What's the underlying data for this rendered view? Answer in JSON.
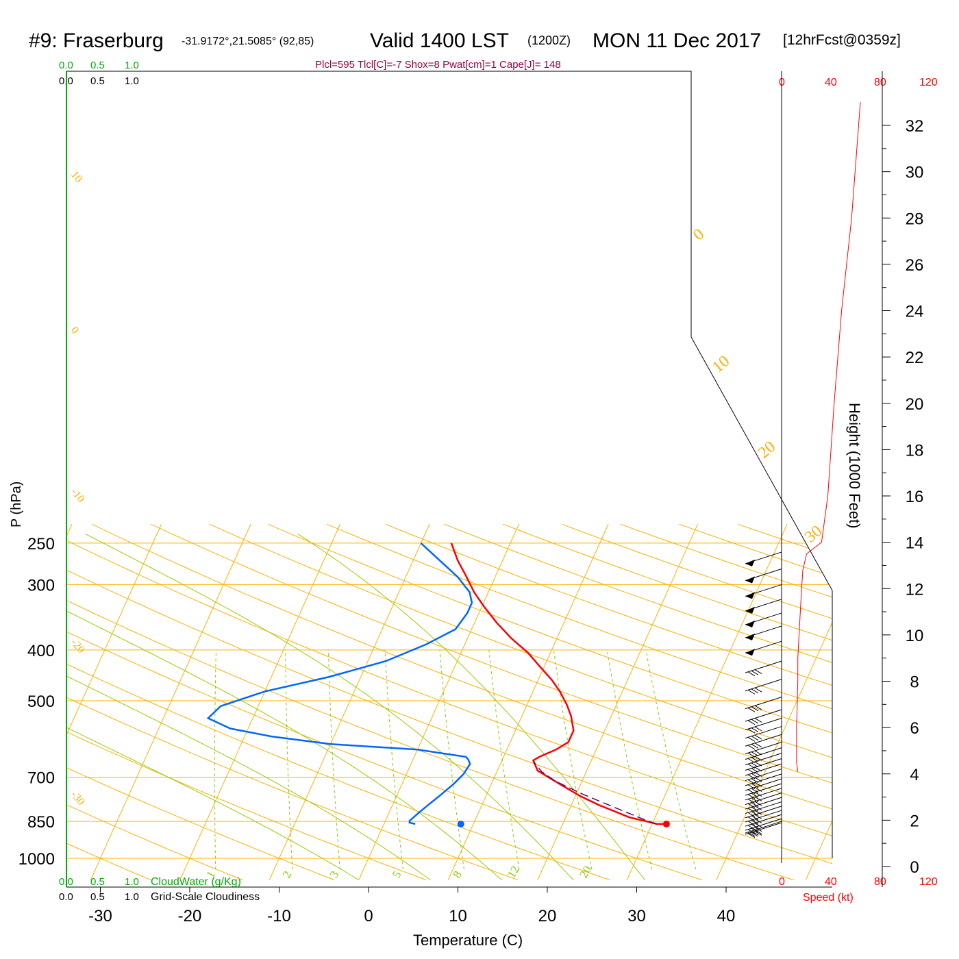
{
  "header": {
    "station": "#9: Fraserburg",
    "coords": "-31.9172°,21.5085° (92,85)",
    "valid": "Valid 1400 LST",
    "utc": "(1200Z)",
    "date": "MON 11 Dec 2017",
    "forecast": "[12hrFcst@0359z]"
  },
  "indices": "Plcl=595 Tlcl[C]=-7 Shox=8 Pwat[cm]=1 Cape[J]= 148",
  "colors": {
    "temperature": "#ff0000",
    "dewpoint": "#0066ff",
    "isobar_isotherm": "#ffb000",
    "adiabat": "#99cc00",
    "mixing_ratio": "#88cc00",
    "parcel": "#660066",
    "cloud_scale": "#00aa00",
    "speed": "#ff0000"
  },
  "cloud_scales": {
    "green_ticks": [
      "0.0",
      "0.5",
      "1.0"
    ],
    "black_ticks": [
      "0.0",
      "0.5",
      "1.0"
    ],
    "bottom_green_label": "CloudWater (g/Kg)",
    "bottom_black_label": "Grid-Scale Cloudiness"
  },
  "speed_axis": {
    "ticks": [
      "0",
      "40",
      "80",
      "120"
    ],
    "label": "Speed (kt)"
  },
  "height_axis": {
    "label": "Height (1000 Feet)",
    "ticks": [
      "0",
      "2",
      "4",
      "6",
      "8",
      "10",
      "12",
      "14",
      "16",
      "18",
      "20",
      "22",
      "24",
      "26",
      "28",
      "30",
      "32"
    ]
  },
  "chart_data": {
    "type": "line",
    "title": "#9: Fraserburg Valid 1400 LST (1200Z) MON 11 Dec 2017",
    "xlabel": "Temperature (C)",
    "ylabel": "P (hPa)",
    "x_ticks": [
      "-30",
      "-20",
      "-10",
      "0",
      "10",
      "20",
      "30",
      "40"
    ],
    "y_ticks": [
      "250",
      "300",
      "400",
      "500",
      "700",
      "850",
      "1000"
    ],
    "y_tick_values": [
      250,
      300,
      400,
      500,
      700,
      850,
      1000
    ],
    "xlim": [
      -33.5,
      36
    ],
    "ylim": [
      1000,
      250
    ],
    "isotherm_labels": [
      "10",
      "0",
      "-10",
      "-20",
      "-30"
    ],
    "upper_isotherm_labels": [
      "0",
      "10",
      "20",
      "30"
    ],
    "mixing_ratio_labels": [
      "1",
      "2",
      "3",
      "5",
      "8",
      "12",
      "20"
    ],
    "series": [
      {
        "name": "Temperature",
        "points": [
          [
            31.6,
            860
          ],
          [
            30.5,
            860
          ],
          [
            29.4,
            851
          ],
          [
            27.1,
            835
          ],
          [
            23.0,
            790
          ],
          [
            20.5,
            760
          ],
          [
            18.0,
            726
          ],
          [
            16.8,
            710
          ],
          [
            14.5,
            680
          ],
          [
            13.5,
            650
          ],
          [
            14.0,
            640
          ],
          [
            15.5,
            620
          ],
          [
            16.5,
            600
          ],
          [
            16.5,
            570
          ],
          [
            15.5,
            535
          ],
          [
            14.5,
            510
          ],
          [
            13.0,
            480
          ],
          [
            11.5,
            456
          ],
          [
            9.5,
            430
          ],
          [
            7.5,
            405
          ],
          [
            4.9,
            380
          ],
          [
            2.5,
            355
          ],
          [
            0.2,
            330
          ],
          [
            -1.6,
            310
          ],
          [
            -3.2,
            290
          ],
          [
            -5.0,
            270
          ],
          [
            -6.6,
            250
          ]
        ]
      },
      {
        "name": "Dewpoint",
        "points": [
          [
            3.5,
            860
          ],
          [
            2.8,
            855
          ],
          [
            2.7,
            848
          ],
          [
            3.3,
            820
          ],
          [
            4.0,
            790
          ],
          [
            4.8,
            760
          ],
          [
            5.8,
            720
          ],
          [
            6.4,
            690
          ],
          [
            6.6,
            660
          ],
          [
            6.2,
            648
          ],
          [
            5.8,
            640
          ],
          [
            0.0,
            620
          ],
          [
            -10.0,
            605
          ],
          [
            -17.0,
            585
          ],
          [
            -22.0,
            565
          ],
          [
            -25.0,
            540
          ],
          [
            -24.2,
            512
          ],
          [
            -20.0,
            480
          ],
          [
            -13.5,
            450
          ],
          [
            -8.0,
            420
          ],
          [
            -4.3,
            390
          ],
          [
            -1.8,
            365
          ],
          [
            -1.3,
            340
          ],
          [
            -1.3,
            325
          ],
          [
            -2.1,
            310
          ],
          [
            -4.2,
            290
          ],
          [
            -7.0,
            270
          ],
          [
            -10.0,
            250
          ]
        ]
      },
      {
        "name": "Parcel",
        "points": [
          [
            30.5,
            860
          ],
          [
            29.5,
            850
          ],
          [
            25.0,
            800
          ],
          [
            20.8,
            755
          ],
          [
            17.0,
            712
          ],
          [
            15.0,
            683
          ],
          [
            13.5,
            652
          ]
        ]
      }
    ],
    "surface_points": {
      "temperature": [
        31.6,
        860
      ],
      "dewpoint": [
        8.6,
        860
      ]
    },
    "wind_barbs_pressure": [
      260,
      280,
      300,
      320,
      340,
      360,
      385,
      420,
      455,
      492,
      520,
      540,
      560,
      580,
      600,
      615,
      630,
      645,
      660,
      675,
      690,
      705,
      720,
      735,
      750,
      765,
      780,
      795,
      810,
      825,
      840,
      850,
      855
    ],
    "wind_speed_profile": {
      "height_kft": [
        4.1,
        4.5,
        6,
        8,
        9,
        10,
        12,
        12.8,
        13.5,
        14,
        16,
        20,
        24,
        28,
        33
      ],
      "speed_kt": [
        13,
        12,
        12,
        13,
        13,
        14,
        16,
        17,
        20,
        32,
        37,
        42,
        48,
        56,
        63
      ]
    }
  }
}
